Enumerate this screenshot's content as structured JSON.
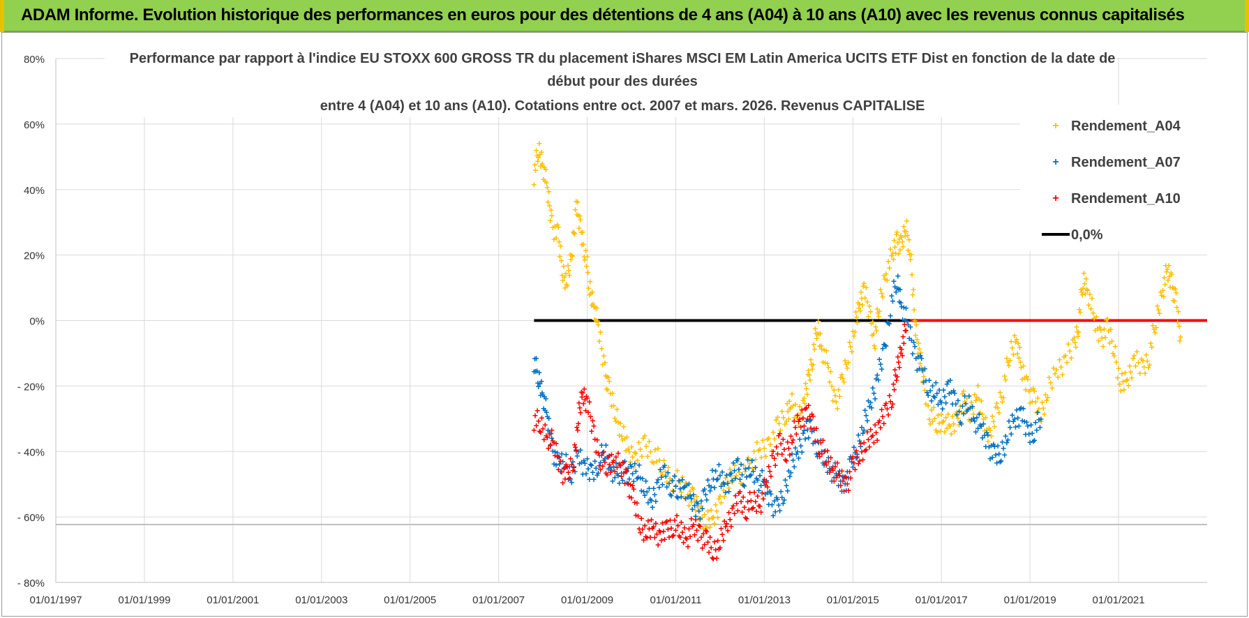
{
  "header": {
    "title": "ADAM Informe. Evolution historique des performances en euros pour des détentions de 4 ans (A04) à 10 ans (A10) avec les revenus connus capitalisés"
  },
  "colors": {
    "banner": "#92D050",
    "a04": "#FFC000",
    "a07": "#0070C0",
    "a10": "#FF0000",
    "zero": "#000000",
    "grid": "#D9D9D9"
  },
  "chart_data": {
    "type": "scatter",
    "title_lines": [
      "Performance par rapport à l'indice EU STOXX 600 GROSS TR  du placement iShares MSCI EM Latin America UCITS ETF Dist en fonction de la date de",
      "début pour des durées",
      "entre 4 (A04) et 10 ans (A10). Cotations entre oct. 2007 et mars. 2026. Revenus CAPITALISE"
    ],
    "xlabel": "",
    "ylabel": "",
    "xlim": [
      1997.0,
      2023.0
    ],
    "ylim": [
      -80,
      80
    ],
    "y_ticks": [
      {
        "value": 80,
        "label": "80%"
      },
      {
        "value": 60,
        "label": "60%"
      },
      {
        "value": 40,
        "label": "40%"
      },
      {
        "value": 20,
        "label": "20%"
      },
      {
        "value": 0,
        "label": "0%"
      },
      {
        "value": -20,
        "label": "- 20%"
      },
      {
        "value": -40,
        "label": "- 40%"
      },
      {
        "value": -60,
        "label": "- 60%"
      },
      {
        "value": -80,
        "label": "- 80%"
      }
    ],
    "x_ticks": [
      {
        "value": 1997.0,
        "label": "01/01/1997"
      },
      {
        "value": 1999.0,
        "label": "01/01/1999"
      },
      {
        "value": 2001.0,
        "label": "01/01/2001"
      },
      {
        "value": 2003.0,
        "label": "01/01/2003"
      },
      {
        "value": 2005.0,
        "label": "01/01/2005"
      },
      {
        "value": 2007.0,
        "label": "01/01/2007"
      },
      {
        "value": 2009.0,
        "label": "01/01/2009"
      },
      {
        "value": 2011.0,
        "label": "01/01/2011"
      },
      {
        "value": 2013.0,
        "label": "01/01/2013"
      },
      {
        "value": 2015.0,
        "label": "01/01/2015"
      },
      {
        "value": 2017.0,
        "label": "01/01/2017"
      },
      {
        "value": 2019.0,
        "label": "01/01/2019"
      },
      {
        "value": 2021.0,
        "label": "01/01/2021"
      }
    ],
    "legend": {
      "position": "top-right",
      "entries": [
        "Rendement_A04",
        "Rendement_A07",
        "Rendement_A10",
        "0,0%"
      ]
    },
    "series": [
      {
        "name": "Rendement_A04",
        "color": "#FFC000",
        "points": [
          [
            2007.8,
            45
          ],
          [
            2007.9,
            52
          ],
          [
            2008.0,
            48
          ],
          [
            2008.1,
            40
          ],
          [
            2008.2,
            30
          ],
          [
            2008.35,
            25
          ],
          [
            2008.45,
            15
          ],
          [
            2008.55,
            12
          ],
          [
            2008.65,
            20
          ],
          [
            2008.75,
            35
          ],
          [
            2008.85,
            28
          ],
          [
            2008.95,
            22
          ],
          [
            2009.05,
            10
          ],
          [
            2009.15,
            5
          ],
          [
            2009.25,
            -2
          ],
          [
            2009.4,
            -15
          ],
          [
            2009.5,
            -22
          ],
          [
            2009.65,
            -28
          ],
          [
            2009.8,
            -35
          ],
          [
            2009.95,
            -40
          ],
          [
            2010.1,
            -42
          ],
          [
            2010.3,
            -38
          ],
          [
            2010.5,
            -40
          ],
          [
            2010.7,
            -45
          ],
          [
            2010.9,
            -48
          ],
          [
            2011.1,
            -50
          ],
          [
            2011.25,
            -52
          ],
          [
            2011.4,
            -55
          ],
          [
            2011.55,
            -58
          ],
          [
            2011.7,
            -62
          ],
          [
            2011.85,
            -60
          ],
          [
            2012.0,
            -55
          ],
          [
            2012.15,
            -50
          ],
          [
            2012.3,
            -45
          ],
          [
            2012.5,
            -48
          ],
          [
            2012.7,
            -42
          ],
          [
            2012.9,
            -40
          ],
          [
            2013.1,
            -38
          ],
          [
            2013.3,
            -33
          ],
          [
            2013.5,
            -28
          ],
          [
            2013.6,
            -25
          ],
          [
            2013.75,
            -30
          ],
          [
            2013.9,
            -25
          ],
          [
            2014.0,
            -18
          ],
          [
            2014.1,
            -10
          ],
          [
            2014.2,
            -2
          ],
          [
            2014.3,
            -8
          ],
          [
            2014.45,
            -15
          ],
          [
            2014.6,
            -25
          ],
          [
            2014.75,
            -20
          ],
          [
            2014.9,
            -10
          ],
          [
            2015.05,
            -2
          ],
          [
            2015.15,
            5
          ],
          [
            2015.25,
            10
          ],
          [
            2015.4,
            0
          ],
          [
            2015.5,
            -5
          ],
          [
            2015.6,
            5
          ],
          [
            2015.75,
            15
          ],
          [
            2015.9,
            20
          ],
          [
            2016.0,
            25
          ],
          [
            2016.1,
            22
          ],
          [
            2016.2,
            30
          ],
          [
            2016.3,
            20
          ],
          [
            2016.4,
            0
          ],
          [
            2016.5,
            -10
          ],
          [
            2016.6,
            -20
          ],
          [
            2016.75,
            -28
          ],
          [
            2016.9,
            -32
          ],
          [
            2017.05,
            -30
          ],
          [
            2017.2,
            -33
          ],
          [
            2017.35,
            -30
          ],
          [
            2017.5,
            -25
          ],
          [
            2017.65,
            -28
          ],
          [
            2017.8,
            -22
          ],
          [
            2017.95,
            -30
          ],
          [
            2018.1,
            -35
          ],
          [
            2018.25,
            -28
          ],
          [
            2018.4,
            -20
          ],
          [
            2018.55,
            -10
          ],
          [
            2018.7,
            -5
          ],
          [
            2018.8,
            -15
          ],
          [
            2018.95,
            -20
          ],
          [
            2019.1,
            -25
          ],
          [
            2019.25,
            -28
          ],
          [
            2019.4,
            -22
          ],
          [
            2019.6,
            -15
          ],
          [
            2019.8,
            -12
          ],
          [
            2020.0,
            -8
          ],
          [
            2020.1,
            0
          ],
          [
            2020.2,
            12
          ],
          [
            2020.3,
            10
          ],
          [
            2020.45,
            0
          ],
          [
            2020.6,
            -5
          ],
          [
            2020.75,
            -3
          ],
          [
            2020.9,
            -8
          ],
          [
            2021.05,
            -20
          ],
          [
            2021.2,
            -18
          ],
          [
            2021.35,
            -12
          ],
          [
            2021.55,
            -15
          ],
          [
            2021.7,
            -10
          ],
          [
            2021.85,
            0
          ],
          [
            2022.0,
            10
          ],
          [
            2022.1,
            15
          ],
          [
            2022.2,
            12
          ],
          [
            2022.3,
            5
          ],
          [
            2022.4,
            -5
          ]
        ]
      },
      {
        "name": "Rendement_A07",
        "color": "#0070C0",
        "points": [
          [
            2007.8,
            -12
          ],
          [
            2007.9,
            -18
          ],
          [
            2008.0,
            -22
          ],
          [
            2008.1,
            -30
          ],
          [
            2008.2,
            -38
          ],
          [
            2008.35,
            -45
          ],
          [
            2008.5,
            -42
          ],
          [
            2008.65,
            -48
          ],
          [
            2008.8,
            -40
          ],
          [
            2008.95,
            -45
          ],
          [
            2009.1,
            -47
          ],
          [
            2009.25,
            -43
          ],
          [
            2009.4,
            -40
          ],
          [
            2009.55,
            -45
          ],
          [
            2009.7,
            -48
          ],
          [
            2009.85,
            -45
          ],
          [
            2010.0,
            -48
          ],
          [
            2010.15,
            -45
          ],
          [
            2010.3,
            -52
          ],
          [
            2010.45,
            -55
          ],
          [
            2010.6,
            -50
          ],
          [
            2010.75,
            -47
          ],
          [
            2010.9,
            -50
          ],
          [
            2011.05,
            -52
          ],
          [
            2011.2,
            -50
          ],
          [
            2011.35,
            -55
          ],
          [
            2011.5,
            -58
          ],
          [
            2011.65,
            -55
          ],
          [
            2011.8,
            -48
          ],
          [
            2011.95,
            -47
          ],
          [
            2012.1,
            -50
          ],
          [
            2012.25,
            -48
          ],
          [
            2012.4,
            -45
          ],
          [
            2012.55,
            -47
          ],
          [
            2012.7,
            -45
          ],
          [
            2012.85,
            -48
          ],
          [
            2013.0,
            -50
          ],
          [
            2013.15,
            -55
          ],
          [
            2013.3,
            -58
          ],
          [
            2013.45,
            -52
          ],
          [
            2013.6,
            -45
          ],
          [
            2013.75,
            -40
          ],
          [
            2013.9,
            -35
          ],
          [
            2014.05,
            -33
          ],
          [
            2014.2,
            -38
          ],
          [
            2014.35,
            -42
          ],
          [
            2014.5,
            -45
          ],
          [
            2014.65,
            -48
          ],
          [
            2014.8,
            -50
          ],
          [
            2014.95,
            -45
          ],
          [
            2015.1,
            -38
          ],
          [
            2015.25,
            -32
          ],
          [
            2015.4,
            -25
          ],
          [
            2015.55,
            -18
          ],
          [
            2015.7,
            -10
          ],
          [
            2015.85,
            5
          ],
          [
            2016.0,
            12
          ],
          [
            2016.1,
            5
          ],
          [
            2016.25,
            -2
          ],
          [
            2016.4,
            -10
          ],
          [
            2016.55,
            -15
          ],
          [
            2016.7,
            -20
          ],
          [
            2016.85,
            -22
          ],
          [
            2017.0,
            -25
          ],
          [
            2017.15,
            -20
          ],
          [
            2017.3,
            -25
          ],
          [
            2017.45,
            -28
          ],
          [
            2017.6,
            -25
          ],
          [
            2017.75,
            -30
          ],
          [
            2017.9,
            -33
          ],
          [
            2018.05,
            -37
          ],
          [
            2018.2,
            -42
          ],
          [
            2018.35,
            -40
          ],
          [
            2018.5,
            -35
          ],
          [
            2018.65,
            -30
          ],
          [
            2018.8,
            -28
          ],
          [
            2018.95,
            -35
          ],
          [
            2019.1,
            -33
          ],
          [
            2019.25,
            -30
          ]
        ]
      },
      {
        "name": "Rendement_A10",
        "color": "#FF0000",
        "points": [
          [
            2007.8,
            -30
          ],
          [
            2007.95,
            -32
          ],
          [
            2008.1,
            -35
          ],
          [
            2008.25,
            -38
          ],
          [
            2008.4,
            -45
          ],
          [
            2008.55,
            -48
          ],
          [
            2008.7,
            -42
          ],
          [
            2008.8,
            -30
          ],
          [
            2008.9,
            -22
          ],
          [
            2009.0,
            -25
          ],
          [
            2009.15,
            -35
          ],
          [
            2009.3,
            -42
          ],
          [
            2009.45,
            -45
          ],
          [
            2009.6,
            -42
          ],
          [
            2009.75,
            -45
          ],
          [
            2009.9,
            -48
          ],
          [
            2010.05,
            -55
          ],
          [
            2010.2,
            -62
          ],
          [
            2010.35,
            -65
          ],
          [
            2010.5,
            -63
          ],
          [
            2010.65,
            -66
          ],
          [
            2010.8,
            -64
          ],
          [
            2010.95,
            -62
          ],
          [
            2011.1,
            -64
          ],
          [
            2011.25,
            -66
          ],
          [
            2011.4,
            -63
          ],
          [
            2011.55,
            -65
          ],
          [
            2011.7,
            -68
          ],
          [
            2011.85,
            -70
          ],
          [
            2012.0,
            -68
          ],
          [
            2012.15,
            -62
          ],
          [
            2012.3,
            -58
          ],
          [
            2012.45,
            -55
          ],
          [
            2012.6,
            -57
          ],
          [
            2012.75,
            -55
          ],
          [
            2012.9,
            -56
          ],
          [
            2013.05,
            -50
          ],
          [
            2013.2,
            -42
          ],
          [
            2013.35,
            -38
          ],
          [
            2013.5,
            -40
          ],
          [
            2013.65,
            -35
          ],
          [
            2013.8,
            -30
          ],
          [
            2013.95,
            -28
          ],
          [
            2014.1,
            -32
          ],
          [
            2014.25,
            -38
          ],
          [
            2014.4,
            -42
          ],
          [
            2014.55,
            -45
          ],
          [
            2014.7,
            -48
          ],
          [
            2014.85,
            -50
          ],
          [
            2015.0,
            -45
          ],
          [
            2015.15,
            -40
          ],
          [
            2015.3,
            -38
          ],
          [
            2015.45,
            -35
          ],
          [
            2015.6,
            -32
          ],
          [
            2015.75,
            -28
          ],
          [
            2015.9,
            -22
          ],
          [
            2016.0,
            -15
          ],
          [
            2016.1,
            -8
          ],
          [
            2016.2,
            -3
          ]
        ]
      }
    ],
    "reference_lines": [
      {
        "name": "0,0% black",
        "y": 0,
        "x_range": [
          2007.8,
          2016.3
        ],
        "color": "#000000"
      },
      {
        "name": "0,0% red",
        "y": 0,
        "x_range": [
          2016.3,
          2023.0
        ],
        "color": "#FF0000"
      }
    ]
  }
}
